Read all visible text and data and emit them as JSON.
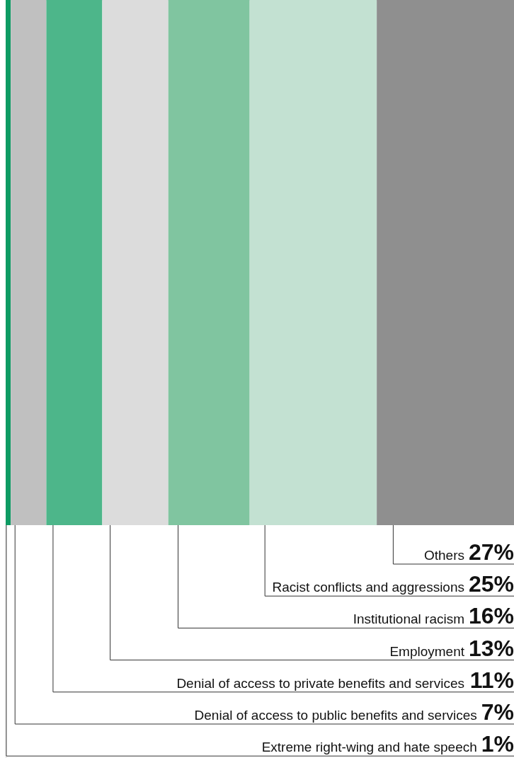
{
  "chart_data": {
    "type": "bar",
    "orientation": "horizontal",
    "stacked": true,
    "categories": [
      null
    ],
    "legend": false,
    "series": [
      {
        "name": "Extreme right-wing and hate speech",
        "color": "#0d9b63",
        "values": [
          1
        ],
        "value_labels": [
          "1%"
        ]
      },
      {
        "name": "Denial of access to public benefits and services",
        "color": "#c0c0c0",
        "values": [
          7
        ],
        "value_labels": [
          "7%"
        ]
      },
      {
        "name": "Denial of access to private benefits and services",
        "color": "#4db68a",
        "values": [
          11
        ],
        "value_labels": [
          "11%"
        ]
      },
      {
        "name": "Employment",
        "color": "#dcdcdc",
        "values": [
          13
        ],
        "value_labels": [
          "13%"
        ]
      },
      {
        "name": "Institutional racism",
        "color": "#80c5a0",
        "values": [
          16
        ],
        "value_labels": [
          "16%"
        ]
      },
      {
        "name": "Racist conflicts and aggressions",
        "color": "#c3e1d2",
        "values": [
          25
        ],
        "value_labels": [
          "25%"
        ]
      },
      {
        "name": "Others",
        "color": "#8f8f8f",
        "values": [
          27
        ],
        "value_labels": [
          "27%"
        ]
      }
    ]
  }
}
